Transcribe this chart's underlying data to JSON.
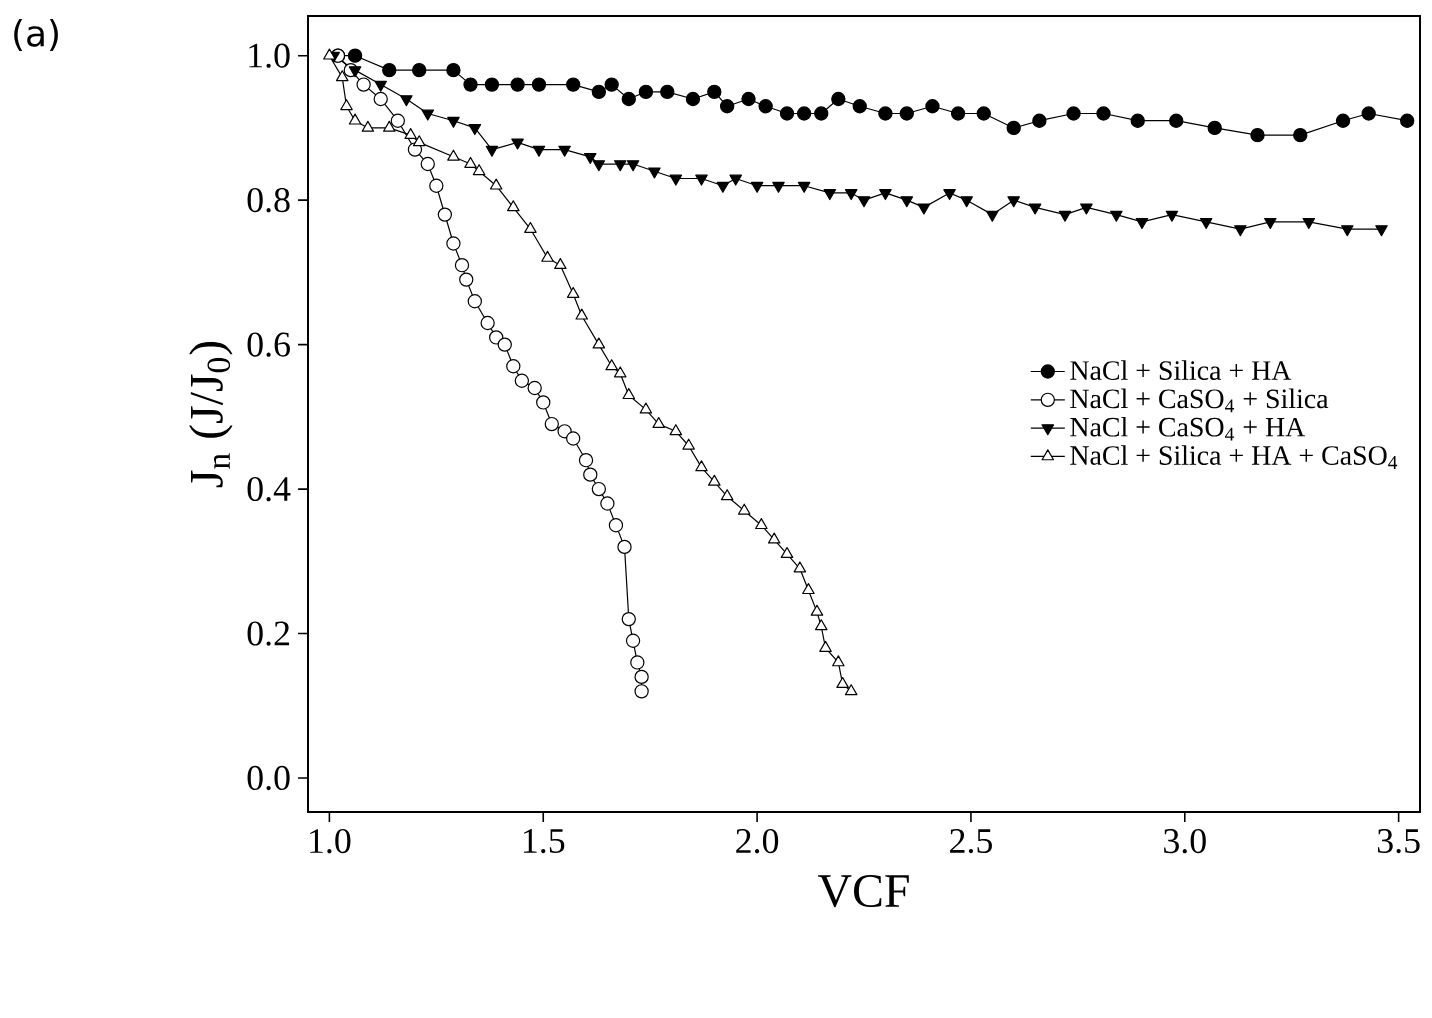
{
  "chart_data": {
    "type": "line",
    "xlabel": "VCF",
    "ylabel": "J$_{n}$ (J/J$_{0}$)",
    "annotations": [
      "(a)"
    ],
    "xlim": [
      0.95,
      3.55
    ],
    "ylim": [
      -0.047,
      1.055
    ],
    "xticks": [
      {
        "value": 1.0,
        "label": "1.0"
      },
      1.5,
      {
        "value": 2.0,
        "label": "2.0"
      },
      2.5,
      {
        "value": 3.0,
        "label": "3.0"
      },
      3.5
    ],
    "yticks": [
      {
        "value": 0.0,
        "label": "0.0"
      },
      0.2,
      0.4,
      0.6,
      0.8,
      {
        "value": 1.0,
        "label": "1.0"
      }
    ],
    "grid": false,
    "legend": "right",
    "line_style": "solid",
    "series": [
      {
        "name": "NaCl + Silica + HA",
        "color": "#000000",
        "marker": "circle",
        "x": [
          1.02,
          1.06,
          1.14,
          1.21,
          1.29,
          1.33,
          1.38,
          1.44,
          1.49,
          1.57,
          1.63,
          1.66,
          1.7,
          1.74,
          1.79,
          1.85,
          1.9,
          1.93,
          1.98,
          2.02,
          2.07,
          2.11,
          2.15,
          2.19,
          2.24,
          2.3,
          2.35,
          2.41,
          2.47,
          2.53,
          2.6,
          2.66,
          2.74,
          2.81,
          2.89,
          2.98,
          3.07,
          3.17,
          3.27,
          3.37,
          3.43,
          3.52
        ],
        "values": [
          1.0,
          1.0,
          0.98,
          0.98,
          0.98,
          0.96,
          0.96,
          0.96,
          0.96,
          0.96,
          0.95,
          0.96,
          0.94,
          0.95,
          0.95,
          0.94,
          0.95,
          0.93,
          0.94,
          0.93,
          0.92,
          0.92,
          0.92,
          0.94,
          0.93,
          0.92,
          0.92,
          0.93,
          0.92,
          0.92,
          0.9,
          0.91,
          0.92,
          0.92,
          0.91,
          0.91,
          0.9,
          0.89,
          0.89,
          0.91,
          0.92,
          0.91
        ]
      },
      {
        "name": "NaCl + CaSO$_{4}$ + Silica",
        "color": "#000000",
        "marker": "circle",
        "x": [
          1.02,
          1.05,
          1.08,
          1.12,
          1.16,
          1.2,
          1.23,
          1.25,
          1.27,
          1.29,
          1.31,
          1.32,
          1.34,
          1.37,
          1.39,
          1.41,
          1.43,
          1.45,
          1.48,
          1.5,
          1.52,
          1.55,
          1.57,
          1.6,
          1.61,
          1.63,
          1.65,
          1.67,
          1.69,
          1.7,
          1.71,
          1.72,
          1.73,
          1.73
        ],
        "values": [
          1.0,
          0.98,
          0.96,
          0.94,
          0.91,
          0.87,
          0.85,
          0.82,
          0.78,
          0.74,
          0.71,
          0.69,
          0.66,
          0.63,
          0.61,
          0.6,
          0.57,
          0.55,
          0.54,
          0.52,
          0.49,
          0.48,
          0.47,
          0.44,
          0.42,
          0.4,
          0.38,
          0.35,
          0.32,
          0.22,
          0.19,
          0.16,
          0.14,
          0.12
        ]
      },
      {
        "name": "NaCl + CaSO$_{4}$ + HA",
        "color": "#000000",
        "marker": "triangle",
        "x": [
          1.01,
          1.06,
          1.12,
          1.18,
          1.23,
          1.29,
          1.34,
          1.38,
          1.44,
          1.49,
          1.55,
          1.61,
          1.63,
          1.68,
          1.71,
          1.76,
          1.81,
          1.87,
          1.92,
          1.95,
          2.0,
          2.05,
          2.11,
          2.17,
          2.22,
          2.25,
          2.3,
          2.35,
          2.39,
          2.45,
          2.49,
          2.55,
          2.6,
          2.65,
          2.72,
          2.77,
          2.84,
          2.9,
          2.97,
          3.05,
          3.13,
          3.2,
          3.29,
          3.38,
          3.46
        ],
        "values": [
          1.0,
          0.98,
          0.96,
          0.94,
          0.92,
          0.91,
          0.9,
          0.87,
          0.88,
          0.87,
          0.87,
          0.86,
          0.85,
          0.85,
          0.85,
          0.84,
          0.83,
          0.83,
          0.82,
          0.83,
          0.82,
          0.82,
          0.82,
          0.81,
          0.81,
          0.8,
          0.81,
          0.8,
          0.79,
          0.81,
          0.8,
          0.78,
          0.8,
          0.79,
          0.78,
          0.79,
          0.78,
          0.77,
          0.78,
          0.77,
          0.76,
          0.77,
          0.77,
          0.76,
          0.76
        ]
      },
      {
        "name": "NaCl + Silica + HA + CaSO$_{4}$",
        "color": "#000000",
        "marker": "triangle",
        "x": [
          1.0,
          1.03,
          1.04,
          1.06,
          1.09,
          1.14,
          1.19,
          1.21,
          1.29,
          1.33,
          1.35,
          1.39,
          1.43,
          1.47,
          1.51,
          1.54,
          1.57,
          1.59,
          1.63,
          1.66,
          1.68,
          1.7,
          1.74,
          1.77,
          1.81,
          1.84,
          1.87,
          1.9,
          1.93,
          1.97,
          2.01,
          2.04,
          2.07,
          2.1,
          2.12,
          2.14,
          2.15,
          2.16,
          2.19,
          2.2,
          2.22
        ],
        "values": [
          1.0,
          0.97,
          0.93,
          0.91,
          0.9,
          0.9,
          0.89,
          0.88,
          0.86,
          0.85,
          0.84,
          0.82,
          0.79,
          0.76,
          0.72,
          0.71,
          0.67,
          0.64,
          0.6,
          0.57,
          0.56,
          0.53,
          0.51,
          0.49,
          0.48,
          0.46,
          0.43,
          0.41,
          0.39,
          0.37,
          0.35,
          0.33,
          0.31,
          0.29,
          0.26,
          0.23,
          0.21,
          0.18,
          0.16,
          0.13,
          0.12
        ]
      }
    ]
  }
}
